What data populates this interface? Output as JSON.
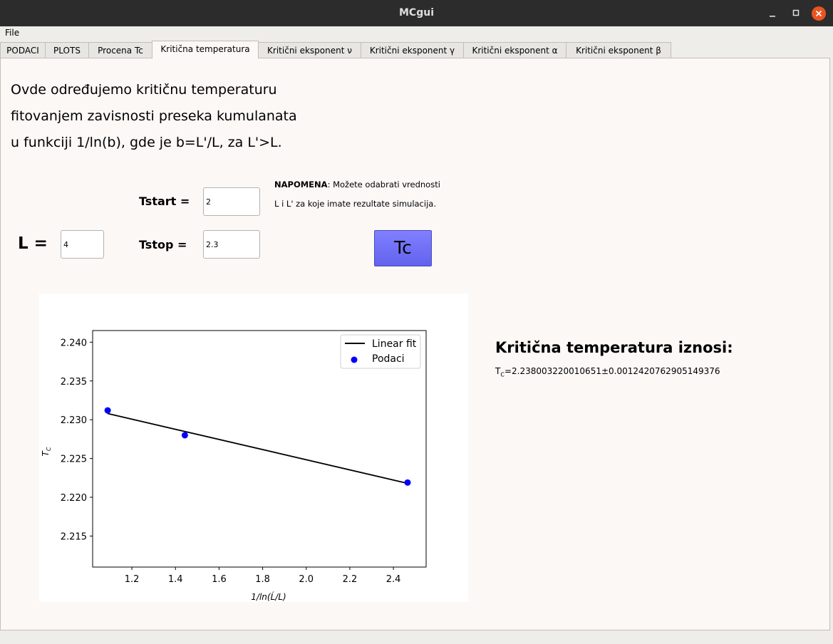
{
  "window": {
    "title": "MCgui"
  },
  "menu": {
    "file": "File"
  },
  "tabs": [
    "PODACI",
    "PLOTS",
    "Procena Tc",
    "Kritična temperatura",
    "Kritični eksponent ν",
    "Kritični eksponent γ",
    "Kritični eksponent α",
    "Kritični eksponent  β"
  ],
  "active_tab": 3,
  "intro": [
    "Ovde određujemo kritičnu temperaturu",
    "fitovanjem zavisnosti preseka kumulanata",
    "u funkciji 1/ln(b), gde je b=L'/L, za L'>L."
  ],
  "form": {
    "tstart_label": "Tstart =",
    "tstart_value": "2",
    "tstop_label": "Tstop =",
    "tstop_value": "2.3",
    "l_label": "L =",
    "l_value": "4",
    "note_bold": "NAPOMENA",
    "note_rest": ": Možete odabrati vrednosti",
    "note_line2": "L i L' za koje imate rezultate simulacija.",
    "button_label": "Tc"
  },
  "result": {
    "heading": "Kritična temperatura iznosi:",
    "value_prefix": "T",
    "value_sub": "C",
    "value_rest": "=2.238003220010651±0.0012420762905149376"
  },
  "chart_data": {
    "type": "scatter",
    "xlabel": "1/ln(Ĺ/L)",
    "ylabel": "T",
    "ylabel_sub": "C",
    "xlim": [
      1.02,
      2.55
    ],
    "ylim": [
      2.211,
      2.2415
    ],
    "x_ticks": [
      1.2,
      1.4,
      1.6,
      1.8,
      2.0,
      2.2,
      2.4
    ],
    "x_tick_labels": [
      "1.2",
      "1.4",
      "1.6",
      "1.8",
      "2.0",
      "2.2",
      "2.4"
    ],
    "y_ticks": [
      2.215,
      2.22,
      2.225,
      2.23,
      2.235,
      2.24
    ],
    "y_tick_labels": [
      "2.215",
      "2.220",
      "2.225",
      "2.230",
      "2.235",
      "2.240"
    ],
    "legend_position": "top-right",
    "series": [
      {
        "name": "Linear fit",
        "kind": "line",
        "color": "#000000",
        "x": [
          1.089,
          2.465
        ],
        "y": [
          2.2308,
          2.2218
        ]
      },
      {
        "name": "Podaci",
        "kind": "scatter",
        "color": "#0000ff",
        "x": [
          1.089,
          1.443,
          2.465
        ],
        "y": [
          2.2312,
          2.228,
          2.2219
        ]
      }
    ]
  }
}
